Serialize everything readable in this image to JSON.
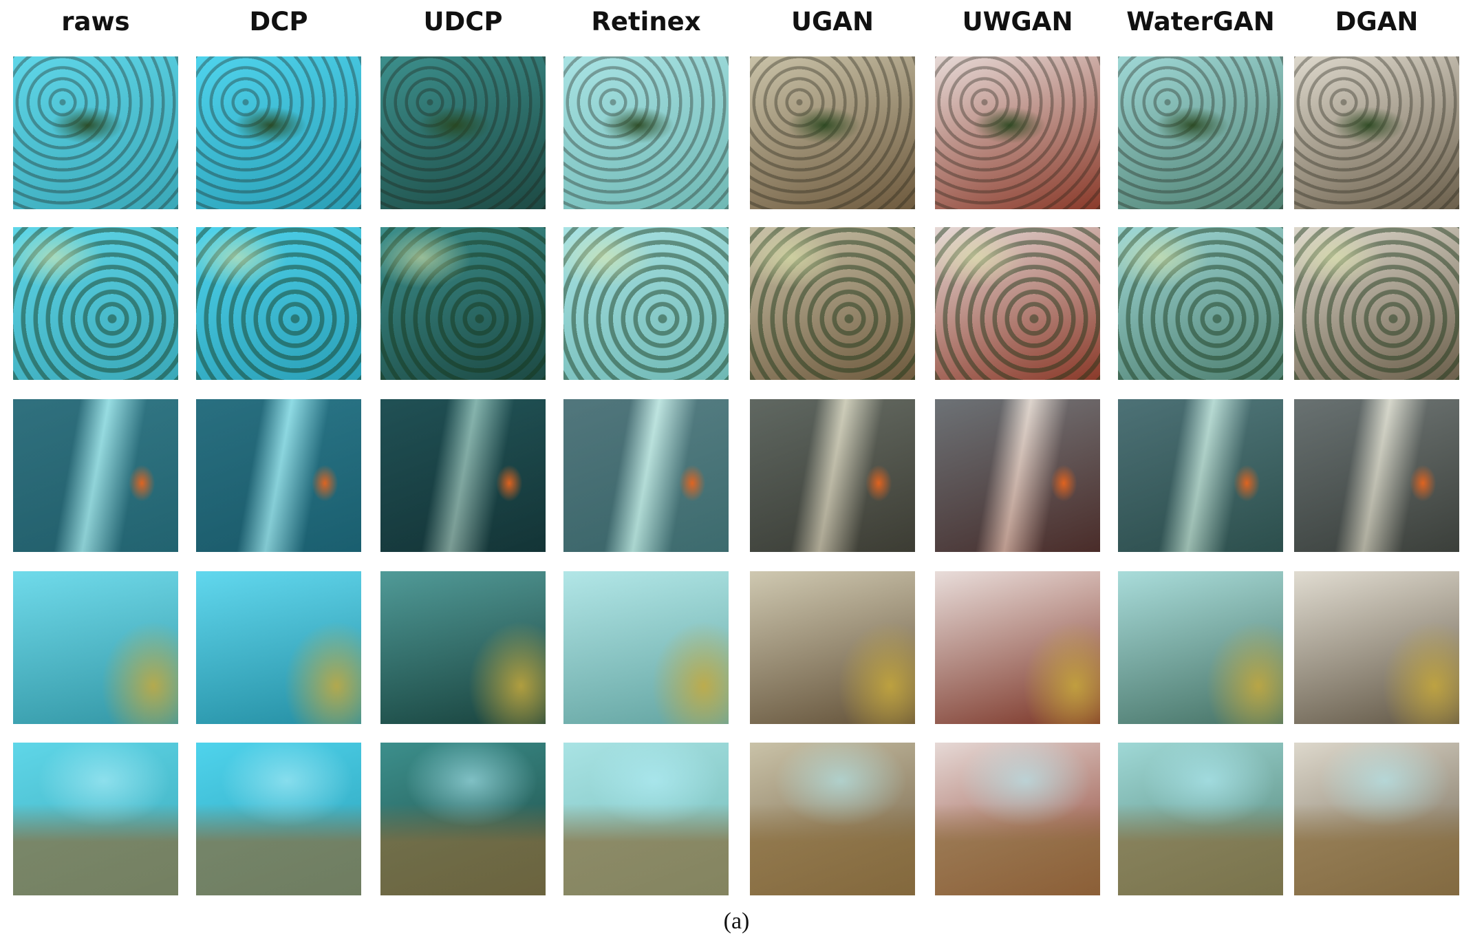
{
  "figure": {
    "column_headers": [
      "raws",
      "DCP",
      "UDCP",
      "Retinex",
      "UGAN",
      "UWGAN",
      "WaterGAN",
      "DGAN"
    ],
    "caption": "(a)"
  }
}
